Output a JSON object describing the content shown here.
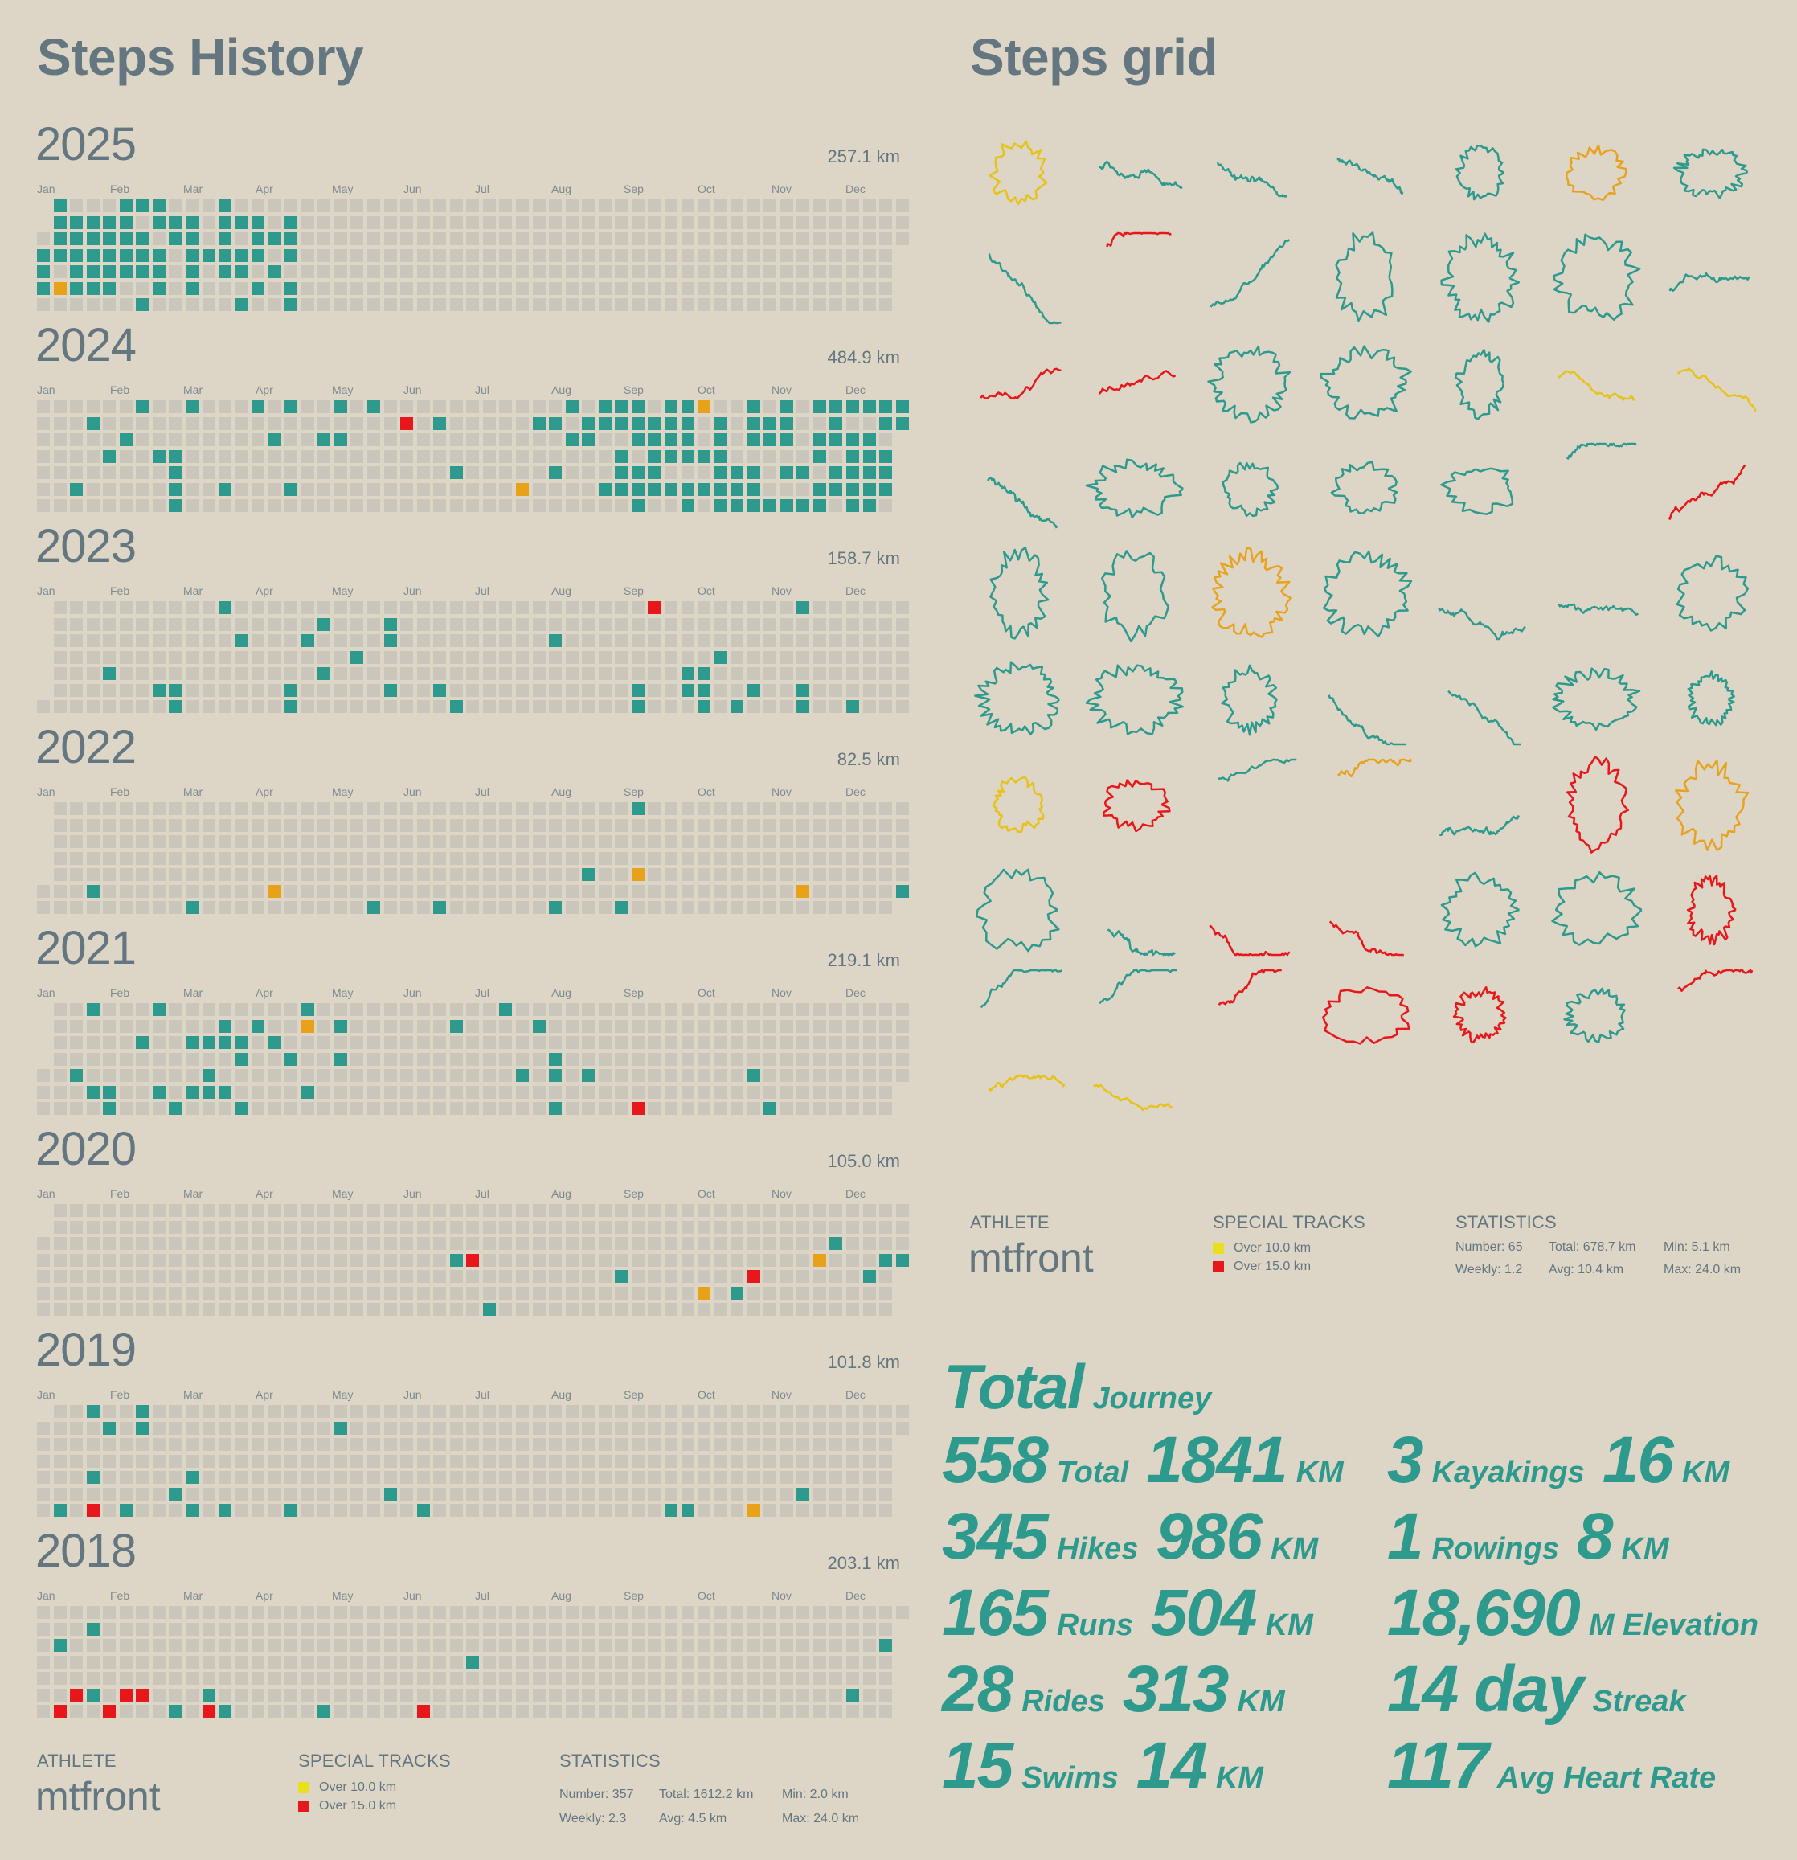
{
  "left": {
    "title": "Steps History",
    "months": [
      "Jan",
      "Feb",
      "Mar",
      "Apr",
      "May",
      "Jun",
      "Jul",
      "Aug",
      "Sep",
      "Oct",
      "Nov",
      "Dec"
    ],
    "colors": {
      "empty": "#cbc6bb",
      "activity": "#2e9a8e",
      "over10": "#e8a21a",
      "over15": "#e8171b"
    },
    "years": [
      {
        "year": "2025",
        "km": "257.1 km",
        "rowRanges": [
          [
            1,
            52
          ],
          [
            1,
            52
          ],
          [
            0,
            52
          ],
          [
            0,
            51
          ],
          [
            0,
            51
          ],
          [
            0,
            51
          ],
          [
            0,
            51
          ]
        ],
        "activity": [
          [
            1,
            5,
            6,
            7,
            11
          ],
          [
            1,
            2,
            3,
            4,
            5,
            7,
            8,
            9,
            11,
            12,
            13,
            15
          ],
          [
            1,
            2,
            3,
            4,
            5,
            6,
            8,
            9,
            11,
            13,
            14,
            15
          ],
          [
            0,
            1,
            2,
            3,
            4,
            5,
            6,
            7,
            9,
            10,
            11,
            12,
            13,
            15
          ],
          [
            0,
            2,
            3,
            4,
            5,
            6,
            7,
            9,
            11,
            12,
            14
          ],
          [
            0,
            2,
            3,
            4,
            7,
            9,
            13,
            15
          ],
          [
            6,
            12,
            15
          ]
        ],
        "over10": [
          [],
          [],
          [],
          [],
          [],
          [
            1
          ],
          []
        ],
        "over15": [
          [],
          [],
          [],
          [],
          [],
          [],
          []
        ]
      },
      {
        "year": "2024",
        "km": "484.9 km",
        "rowRanges": [
          [
            0,
            52
          ],
          [
            0,
            52
          ],
          [
            0,
            51
          ],
          [
            0,
            51
          ],
          [
            0,
            51
          ],
          [
            0,
            51
          ],
          [
            0,
            51
          ]
        ],
        "activity": [
          [
            6,
            9,
            13,
            15,
            18,
            20,
            32,
            34,
            35,
            36,
            38,
            39,
            43,
            45,
            47,
            48,
            49,
            50,
            51,
            52
          ],
          [
            3,
            24,
            30,
            31,
            33,
            34,
            35,
            36,
            37,
            38,
            39,
            41,
            43,
            44,
            45,
            48,
            51,
            52
          ],
          [
            5,
            14,
            17,
            18,
            32,
            33,
            36,
            37,
            38,
            39,
            41,
            43,
            44,
            45,
            47,
            48,
            49,
            50
          ],
          [
            4,
            7,
            8,
            35,
            37,
            38,
            39,
            40,
            41,
            47,
            49,
            50,
            51
          ],
          [
            8,
            25,
            31,
            35,
            36,
            37,
            41,
            42,
            43,
            45,
            46,
            48,
            49,
            50,
            51
          ],
          [
            2,
            8,
            11,
            15,
            34,
            35,
            36,
            37,
            38,
            39,
            40,
            41,
            42,
            43,
            47,
            48,
            49,
            50,
            51
          ],
          [
            8,
            36,
            39,
            41,
            42,
            43,
            44,
            45,
            46,
            47,
            49,
            50
          ]
        ],
        "over10": [
          [
            40
          ],
          [],
          [],
          [],
          [],
          [
            29
          ],
          []
        ],
        "over15": [
          [],
          [
            22
          ],
          [],
          [],
          [],
          [],
          []
        ]
      },
      {
        "year": "2023",
        "km": "158.7 km",
        "rowRanges": [
          [
            1,
            52
          ],
          [
            1,
            52
          ],
          [
            1,
            52
          ],
          [
            1,
            52
          ],
          [
            1,
            52
          ],
          [
            1,
            52
          ],
          [
            0,
            52
          ]
        ],
        "activity": [
          [
            11,
            46
          ],
          [
            17,
            21
          ],
          [
            12,
            16,
            21,
            31
          ],
          [
            19,
            41
          ],
          [
            4,
            17,
            39,
            40
          ],
          [
            7,
            8,
            15,
            21,
            24,
            36,
            39,
            40,
            43,
            46
          ],
          [
            8,
            15,
            25,
            36,
            40,
            42,
            46,
            49
          ]
        ],
        "over10": [
          [],
          [],
          [],
          [],
          [],
          [],
          []
        ],
        "over15": [
          [
            37
          ],
          [],
          [],
          [],
          [],
          [],
          []
        ]
      },
      {
        "year": "2022",
        "km": "82.5 km",
        "rowRanges": [
          [
            1,
            52
          ],
          [
            1,
            52
          ],
          [
            1,
            52
          ],
          [
            1,
            52
          ],
          [
            1,
            52
          ],
          [
            0,
            52
          ],
          [
            0,
            51
          ]
        ],
        "activity": [
          [
            36
          ],
          [],
          [],
          [],
          [
            33
          ],
          [
            3,
            52
          ],
          [
            9,
            20,
            24,
            31,
            35
          ]
        ],
        "over10": [
          [],
          [],
          [],
          [],
          [
            36
          ],
          [
            14,
            46
          ],
          []
        ],
        "over15": [
          [],
          [],
          [],
          [],
          [],
          [],
          []
        ]
      },
      {
        "year": "2021",
        "km": "219.1 km",
        "rowRanges": [
          [
            1,
            52
          ],
          [
            1,
            52
          ],
          [
            1,
            52
          ],
          [
            1,
            52
          ],
          [
            0,
            52
          ],
          [
            0,
            51
          ],
          [
            0,
            51
          ]
        ],
        "activity": [
          [
            3,
            7,
            16,
            28
          ],
          [
            11,
            13,
            18,
            25,
            30
          ],
          [
            6,
            9,
            10,
            11,
            12,
            14
          ],
          [
            12,
            15,
            18,
            31
          ],
          [
            2,
            10,
            29,
            31,
            33,
            43
          ],
          [
            3,
            4,
            7,
            9,
            10,
            11,
            16
          ],
          [
            4,
            8,
            12,
            31,
            44
          ]
        ],
        "over10": [
          [],
          [
            16
          ],
          [],
          [],
          [],
          [],
          []
        ],
        "over15": [
          [],
          [],
          [],
          [],
          [],
          [],
          [
            36
          ]
        ]
      },
      {
        "year": "2020",
        "km": "105.0 km",
        "rowRanges": [
          [
            1,
            52
          ],
          [
            1,
            52
          ],
          [
            0,
            52
          ],
          [
            0,
            52
          ],
          [
            0,
            51
          ],
          [
            0,
            51
          ],
          [
            0,
            51
          ]
        ],
        "activity": [
          [],
          [],
          [
            48
          ],
          [
            25,
            51,
            52
          ],
          [
            35,
            50
          ],
          [
            42
          ],
          [
            27
          ]
        ],
        "over10": [
          [],
          [],
          [],
          [
            47
          ],
          [],
          [
            40
          ],
          []
        ],
        "over15": [
          [],
          [],
          [],
          [
            26
          ],
          [
            43
          ],
          [],
          []
        ]
      },
      {
        "year": "2019",
        "km": "101.8 km",
        "rowRanges": [
          [
            1,
            52
          ],
          [
            0,
            52
          ],
          [
            0,
            51
          ],
          [
            0,
            51
          ],
          [
            0,
            51
          ],
          [
            0,
            51
          ],
          [
            0,
            51
          ]
        ],
        "activity": [
          [
            3,
            6
          ],
          [
            4,
            6,
            18
          ],
          [],
          [],
          [
            3,
            9
          ],
          [
            8,
            21,
            46
          ],
          [
            1,
            5,
            9,
            11,
            15,
            23,
            38,
            39
          ]
        ],
        "over10": [
          [],
          [],
          [],
          [],
          [],
          [],
          [
            43
          ]
        ],
        "over15": [
          [],
          [],
          [],
          [],
          [],
          [],
          [
            3
          ]
        ]
      },
      {
        "year": "2018",
        "km": "203.1 km",
        "rowRanges": [
          [
            0,
            52
          ],
          [
            0,
            51
          ],
          [
            0,
            51
          ],
          [
            0,
            51
          ],
          [
            0,
            51
          ],
          [
            0,
            51
          ],
          [
            0,
            51
          ]
        ],
        "activity": [
          [],
          [
            3
          ],
          [
            1,
            51
          ],
          [
            26
          ],
          [],
          [
            3,
            10,
            49
          ],
          [
            8,
            11,
            17
          ]
        ],
        "over10": [
          [],
          [],
          [],
          [],
          [],
          [],
          []
        ],
        "over15": [
          [],
          [],
          [],
          [],
          [],
          [
            2,
            5,
            6
          ],
          [
            1,
            4,
            10,
            23
          ]
        ]
      }
    ],
    "footer": {
      "athlete_label": "ATHLETE",
      "athlete_name": "mtfront",
      "special_label": "SPECIAL TRACKS",
      "special": [
        {
          "label": "Over 10.0 km",
          "color": "#e8e01a"
        },
        {
          "label": "Over 15.0 km",
          "color": "#e8171b"
        }
      ],
      "stats_label": "STATISTICS",
      "stats": [
        "Number: 357",
        "Total: 1612.2 km",
        "Min: 2.0 km",
        "Weekly: 2.3",
        "Avg: 4.5 km",
        "Max: 24.0 km"
      ]
    }
  },
  "right": {
    "title": "Steps grid",
    "route_colors": {
      "normal": "#2e9a8e",
      "gold": "#e6c21a",
      "orange": "#e7a320",
      "red": "#e8171b"
    },
    "routes": [
      "gold",
      "normal",
      "normal",
      "normal",
      "normal",
      "orange",
      "normal",
      "normal",
      "red",
      "normal",
      "normal",
      "normal",
      "normal",
      "normal",
      "red",
      "red",
      "normal",
      "normal",
      "normal",
      "gold",
      "gold",
      "normal",
      "normal",
      "normal",
      "normal",
      "normal",
      "normal",
      "red",
      "normal",
      "normal",
      "orange",
      "normal",
      "normal",
      "normal",
      "normal",
      "normal",
      "normal",
      "normal",
      "normal",
      "normal",
      "normal",
      "normal",
      "gold",
      "red",
      "normal",
      "orange",
      "normal",
      "red",
      "orange",
      "normal",
      "normal",
      "red",
      "red",
      "normal",
      "normal",
      "red",
      "normal",
      "normal",
      "red",
      "red",
      "red",
      "normal",
      "red",
      "gold",
      "gold"
    ],
    "footer": {
      "athlete_label": "ATHLETE",
      "athlete_name": "mtfront",
      "special_label": "SPECIAL TRACKS",
      "special": [
        {
          "label": "Over 10.0 km",
          "color": "#e8e01a"
        },
        {
          "label": "Over 15.0 km",
          "color": "#e8171b"
        }
      ],
      "stats_label": "STATISTICS",
      "stats": [
        "Number: 65",
        "Total: 678.7 km",
        "Min: 5.1 km",
        "Weekly: 1.2",
        "Avg: 10.4 km",
        "Max: 24.0 km"
      ]
    },
    "totals": {
      "title": "Total",
      "subtitle": "Journey",
      "left_rows": [
        {
          "count": "558",
          "label": "Total",
          "dist": "1841",
          "unit": "KM"
        },
        {
          "count": "345",
          "label": "Hikes",
          "dist": "986",
          "unit": "KM"
        },
        {
          "count": "165",
          "label": "Runs",
          "dist": "504",
          "unit": "KM"
        },
        {
          "count": "28",
          "label": "Rides",
          "dist": "313",
          "unit": "KM"
        },
        {
          "count": "15",
          "label": "Swims",
          "dist": "14",
          "unit": "KM"
        }
      ],
      "right_rows": [
        {
          "count": "3",
          "label": "Kayakings",
          "dist": "16",
          "unit": "KM"
        },
        {
          "count": "1",
          "label": "Rowings",
          "dist": "8",
          "unit": "KM"
        },
        {
          "count": "18,690",
          "label": "M Elevation"
        },
        {
          "count": "14 day",
          "label": "Streak"
        },
        {
          "count": "117",
          "label": "Avg Heart Rate"
        }
      ]
    }
  },
  "chart_data": {
    "type": "heatmap",
    "title": "Steps History",
    "x": [
      "Jan",
      "Feb",
      "Mar",
      "Apr",
      "May",
      "Jun",
      "Jul",
      "Aug",
      "Sep",
      "Oct",
      "Nov",
      "Dec"
    ],
    "legend": [
      "Over 10.0 km",
      "Over 15.0 km"
    ],
    "series": [
      {
        "name": "2025",
        "total_km": 257.1
      },
      {
        "name": "2024",
        "total_km": 484.9
      },
      {
        "name": "2023",
        "total_km": 158.7
      },
      {
        "name": "2022",
        "total_km": 82.5
      },
      {
        "name": "2021",
        "total_km": 219.1
      },
      {
        "name": "2020",
        "total_km": 105.0
      },
      {
        "name": "2019",
        "total_km": 101.8
      },
      {
        "name": "2018",
        "total_km": 203.1
      }
    ]
  }
}
